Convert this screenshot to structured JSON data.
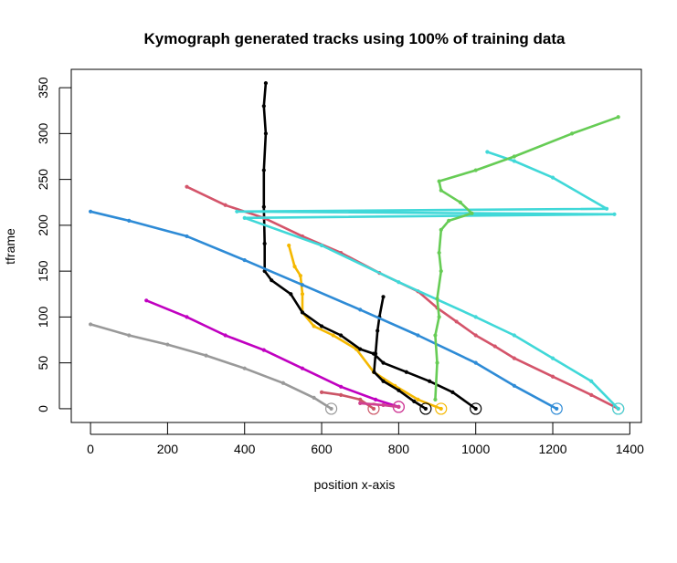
{
  "chart_data": {
    "type": "line",
    "title": "Kymograph generated tracks using 100% of training data",
    "xlabel": "position x-axis",
    "ylabel": "tframe",
    "xlim": [
      -50,
      1430
    ],
    "ylim": [
      -15,
      370
    ],
    "x_ticks": [
      0,
      200,
      400,
      600,
      800,
      1000,
      1200,
      1400
    ],
    "y_ticks": [
      0,
      50,
      100,
      150,
      200,
      250,
      300,
      350
    ],
    "grid": false,
    "legend": "none",
    "series": [
      {
        "color": "#999999",
        "endpoint_marker": true,
        "points": [
          [
            0,
            92
          ],
          [
            100,
            80
          ],
          [
            200,
            70
          ],
          [
            300,
            58
          ],
          [
            400,
            44
          ],
          [
            500,
            28
          ],
          [
            580,
            12
          ],
          [
            625,
            0
          ]
        ]
      },
      {
        "color": "#c000c0",
        "endpoint_marker": true,
        "points": [
          [
            145,
            118
          ],
          [
            250,
            100
          ],
          [
            350,
            80
          ],
          [
            450,
            64
          ],
          [
            550,
            44
          ],
          [
            650,
            24
          ],
          [
            740,
            10
          ],
          [
            800,
            2
          ]
        ]
      },
      {
        "color": "#cc5566",
        "endpoint_marker": true,
        "points": [
          [
            600,
            18
          ],
          [
            650,
            15
          ],
          [
            700,
            10
          ],
          [
            735,
            0
          ]
        ]
      },
      {
        "color": "#d04090",
        "endpoint_marker": true,
        "points": [
          [
            700,
            6
          ],
          [
            760,
            4
          ],
          [
            800,
            2
          ]
        ]
      },
      {
        "color": "#f5b800",
        "endpoint_marker": true,
        "points": [
          [
            515,
            178
          ],
          [
            530,
            155
          ],
          [
            545,
            145
          ],
          [
            550,
            125
          ],
          [
            550,
            105
          ],
          [
            580,
            90
          ],
          [
            630,
            80
          ],
          [
            690,
            65
          ],
          [
            735,
            40
          ],
          [
            790,
            25
          ],
          [
            850,
            10
          ],
          [
            910,
            0
          ]
        ]
      },
      {
        "color": "#000000",
        "endpoint_marker": true,
        "points": [
          [
            455,
            355
          ],
          [
            450,
            330
          ],
          [
            455,
            300
          ],
          [
            450,
            260
          ],
          [
            450,
            220
          ],
          [
            452,
            180
          ],
          [
            452,
            150
          ],
          [
            470,
            140
          ],
          [
            520,
            125
          ],
          [
            550,
            105
          ],
          [
            600,
            90
          ],
          [
            650,
            80
          ],
          [
            700,
            65
          ],
          [
            735,
            60
          ],
          [
            760,
            50
          ],
          [
            820,
            40
          ],
          [
            880,
            30
          ],
          [
            940,
            18
          ],
          [
            1000,
            0
          ]
        ]
      },
      {
        "color": "#000000",
        "endpoint_marker": true,
        "points": [
          [
            760,
            122
          ],
          [
            750,
            100
          ],
          [
            745,
            85
          ],
          [
            740,
            60
          ],
          [
            736,
            40
          ],
          [
            760,
            30
          ],
          [
            800,
            20
          ],
          [
            840,
            8
          ],
          [
            870,
            0
          ]
        ]
      },
      {
        "color": "#2e8bd6",
        "endpoint_marker": true,
        "points": [
          [
            0,
            215
          ],
          [
            100,
            205
          ],
          [
            250,
            188
          ],
          [
            400,
            162
          ],
          [
            550,
            135
          ],
          [
            700,
            108
          ],
          [
            850,
            80
          ],
          [
            1000,
            50
          ],
          [
            1100,
            25
          ],
          [
            1210,
            0
          ]
        ]
      },
      {
        "color": "#d4546a",
        "endpoint_marker": true,
        "points": [
          [
            250,
            242
          ],
          [
            350,
            222
          ],
          [
            450,
            208
          ],
          [
            550,
            188
          ],
          [
            650,
            170
          ],
          [
            750,
            148
          ],
          [
            850,
            128
          ],
          [
            900,
            110
          ],
          [
            950,
            95
          ],
          [
            1000,
            80
          ],
          [
            1050,
            68
          ],
          [
            1100,
            55
          ],
          [
            1200,
            35
          ],
          [
            1300,
            15
          ],
          [
            1370,
            0
          ]
        ]
      },
      {
        "color": "#40d8d8",
        "endpoint_marker": true,
        "points": [
          [
            1030,
            280
          ],
          [
            1100,
            270
          ],
          [
            1200,
            252
          ],
          [
            1340,
            218
          ],
          [
            380,
            215
          ],
          [
            1360,
            212
          ],
          [
            400,
            208
          ],
          [
            600,
            178
          ],
          [
            800,
            138
          ],
          [
            1000,
            100
          ],
          [
            1100,
            80
          ],
          [
            1200,
            55
          ],
          [
            1300,
            30
          ],
          [
            1370,
            0
          ]
        ]
      },
      {
        "color": "#66cc55",
        "endpoint_marker": false,
        "points": [
          [
            1370,
            318
          ],
          [
            1250,
            300
          ],
          [
            1100,
            275
          ],
          [
            1000,
            260
          ],
          [
            905,
            248
          ],
          [
            910,
            238
          ],
          [
            960,
            225
          ],
          [
            990,
            213
          ],
          [
            930,
            205
          ],
          [
            910,
            195
          ],
          [
            905,
            170
          ],
          [
            910,
            150
          ],
          [
            900,
            120
          ],
          [
            905,
            100
          ],
          [
            895,
            80
          ],
          [
            900,
            50
          ],
          [
            895,
            10
          ]
        ]
      }
    ]
  }
}
